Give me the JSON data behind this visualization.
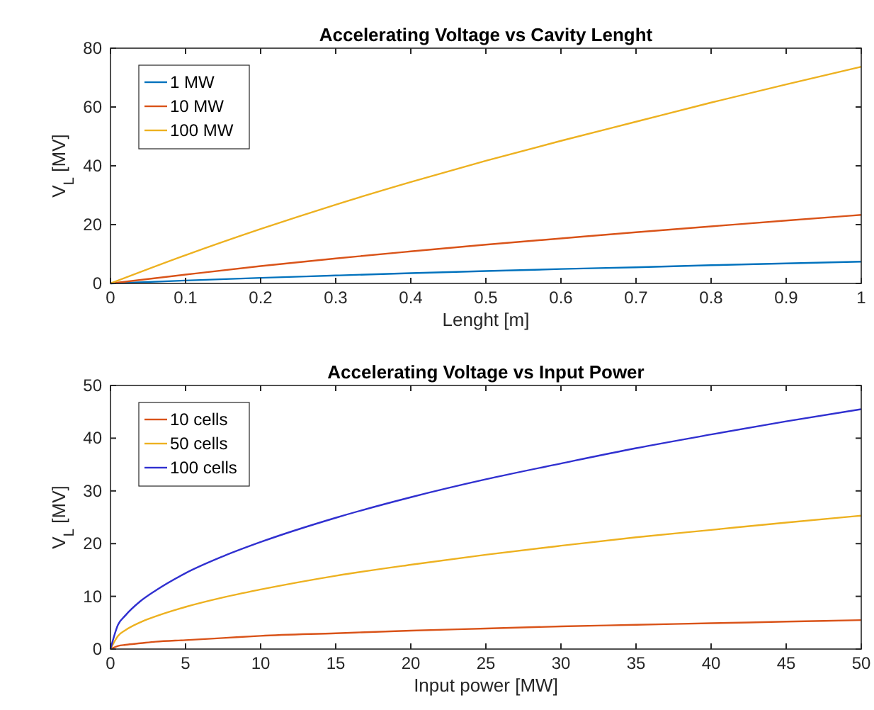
{
  "chart_data": [
    {
      "type": "line",
      "title": "Accelerating Voltage vs Cavity Lenght",
      "xlabel": "Lenght [m]",
      "ylabel": "V$_{L}$ [MV]",
      "x": [
        0,
        0.1,
        0.2,
        0.3,
        0.4,
        0.5,
        0.6,
        0.7,
        0.8,
        0.9,
        1
      ],
      "xlim": [
        0,
        1
      ],
      "xticks": [
        0,
        0.1,
        0.2,
        0.3,
        0.4,
        0.5,
        0.6,
        0.7,
        0.8,
        0.9,
        1
      ],
      "ylim": [
        0,
        80
      ],
      "yticks": [
        0,
        20,
        40,
        60,
        80
      ],
      "grid": false,
      "legend": "top left",
      "series": [
        {
          "name": "1 MW",
          "color": "#0072bd",
          "values": [
            0,
            1,
            1.9,
            2.7,
            3.5,
            4.2,
            4.9,
            5.5,
            6.2,
            6.8,
            7.4
          ]
        },
        {
          "name": "10 MW",
          "color": "#d95319",
          "values": [
            0,
            3,
            5.9,
            8.5,
            10.9,
            13.2,
            15.3,
            17.4,
            19.4,
            21.4,
            23.3
          ]
        },
        {
          "name": "100 MW",
          "color": "#edb120",
          "values": [
            0,
            9.6,
            18.5,
            26.8,
            34.5,
            41.7,
            48.5,
            55,
            61.5,
            67.7,
            73.7
          ]
        }
      ]
    },
    {
      "type": "line",
      "title": "Accelerating Voltage vs Input Power",
      "xlabel": "Input power [MW]",
      "ylabel": "V$_{L}$ [MV]",
      "x": [
        0,
        0.5,
        1,
        2,
        3,
        5,
        7.5,
        10,
        15,
        20,
        25,
        30,
        35,
        40,
        45,
        50
      ],
      "xlim": [
        0,
        50
      ],
      "xticks": [
        0,
        5,
        10,
        15,
        20,
        25,
        30,
        35,
        40,
        45,
        50
      ],
      "ylim": [
        0,
        50
      ],
      "yticks": [
        0,
        10,
        20,
        30,
        40,
        50
      ],
      "grid": false,
      "legend": "top left",
      "series": [
        {
          "name": "10 cells",
          "color": "#d95319",
          "values": [
            0,
            0.6,
            0.8,
            1.1,
            1.4,
            1.7,
            2.1,
            2.5,
            3,
            3.5,
            3.9,
            4.3,
            4.6,
            4.9,
            5.2,
            5.5
          ]
        },
        {
          "name": "50 cells",
          "color": "#edb120",
          "values": [
            0,
            2.5,
            3.6,
            5.1,
            6.2,
            8,
            9.8,
            11.3,
            13.9,
            16,
            17.9,
            19.6,
            21.2,
            22.6,
            24,
            25.3
          ]
        },
        {
          "name": "100 cells",
          "color": "#3030d0",
          "values": [
            0,
            4.6,
            6.4,
            9.1,
            11.1,
            14.4,
            17.6,
            20.3,
            24.9,
            28.8,
            32.2,
            35.2,
            38.1,
            40.7,
            43.2,
            45.5
          ]
        }
      ]
    }
  ]
}
